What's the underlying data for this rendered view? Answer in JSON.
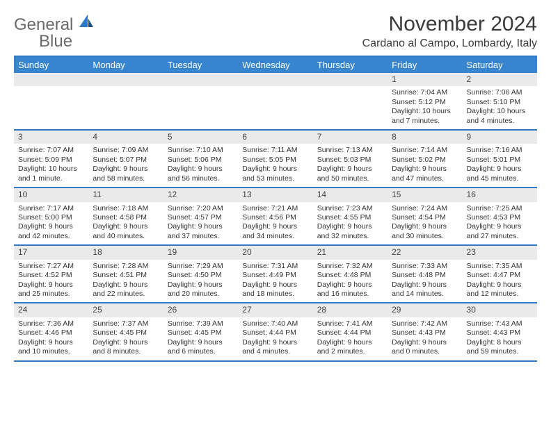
{
  "brand": {
    "name_a": "General",
    "name_b": "Blue"
  },
  "title": "November 2024",
  "location": "Cardano al Campo, Lombardy, Italy",
  "colors": {
    "accent": "#3784cf",
    "rule": "#2f78c4",
    "band": "#eaeaea",
    "text": "#333333",
    "logo_gray": "#6a6a6a"
  },
  "daysOfWeek": [
    "Sunday",
    "Monday",
    "Tuesday",
    "Wednesday",
    "Thursday",
    "Friday",
    "Saturday"
  ],
  "weeks": [
    [
      null,
      null,
      null,
      null,
      null,
      {
        "n": "1",
        "sr": "7:04 AM",
        "ss": "5:12 PM",
        "dl": "10 hours and 7 minutes."
      },
      {
        "n": "2",
        "sr": "7:06 AM",
        "ss": "5:10 PM",
        "dl": "10 hours and 4 minutes."
      }
    ],
    [
      {
        "n": "3",
        "sr": "7:07 AM",
        "ss": "5:09 PM",
        "dl": "10 hours and 1 minute."
      },
      {
        "n": "4",
        "sr": "7:09 AM",
        "ss": "5:07 PM",
        "dl": "9 hours and 58 minutes."
      },
      {
        "n": "5",
        "sr": "7:10 AM",
        "ss": "5:06 PM",
        "dl": "9 hours and 56 minutes."
      },
      {
        "n": "6",
        "sr": "7:11 AM",
        "ss": "5:05 PM",
        "dl": "9 hours and 53 minutes."
      },
      {
        "n": "7",
        "sr": "7:13 AM",
        "ss": "5:03 PM",
        "dl": "9 hours and 50 minutes."
      },
      {
        "n": "8",
        "sr": "7:14 AM",
        "ss": "5:02 PM",
        "dl": "9 hours and 47 minutes."
      },
      {
        "n": "9",
        "sr": "7:16 AM",
        "ss": "5:01 PM",
        "dl": "9 hours and 45 minutes."
      }
    ],
    [
      {
        "n": "10",
        "sr": "7:17 AM",
        "ss": "5:00 PM",
        "dl": "9 hours and 42 minutes."
      },
      {
        "n": "11",
        "sr": "7:18 AM",
        "ss": "4:58 PM",
        "dl": "9 hours and 40 minutes."
      },
      {
        "n": "12",
        "sr": "7:20 AM",
        "ss": "4:57 PM",
        "dl": "9 hours and 37 minutes."
      },
      {
        "n": "13",
        "sr": "7:21 AM",
        "ss": "4:56 PM",
        "dl": "9 hours and 34 minutes."
      },
      {
        "n": "14",
        "sr": "7:23 AM",
        "ss": "4:55 PM",
        "dl": "9 hours and 32 minutes."
      },
      {
        "n": "15",
        "sr": "7:24 AM",
        "ss": "4:54 PM",
        "dl": "9 hours and 30 minutes."
      },
      {
        "n": "16",
        "sr": "7:25 AM",
        "ss": "4:53 PM",
        "dl": "9 hours and 27 minutes."
      }
    ],
    [
      {
        "n": "17",
        "sr": "7:27 AM",
        "ss": "4:52 PM",
        "dl": "9 hours and 25 minutes."
      },
      {
        "n": "18",
        "sr": "7:28 AM",
        "ss": "4:51 PM",
        "dl": "9 hours and 22 minutes."
      },
      {
        "n": "19",
        "sr": "7:29 AM",
        "ss": "4:50 PM",
        "dl": "9 hours and 20 minutes."
      },
      {
        "n": "20",
        "sr": "7:31 AM",
        "ss": "4:49 PM",
        "dl": "9 hours and 18 minutes."
      },
      {
        "n": "21",
        "sr": "7:32 AM",
        "ss": "4:48 PM",
        "dl": "9 hours and 16 minutes."
      },
      {
        "n": "22",
        "sr": "7:33 AM",
        "ss": "4:48 PM",
        "dl": "9 hours and 14 minutes."
      },
      {
        "n": "23",
        "sr": "7:35 AM",
        "ss": "4:47 PM",
        "dl": "9 hours and 12 minutes."
      }
    ],
    [
      {
        "n": "24",
        "sr": "7:36 AM",
        "ss": "4:46 PM",
        "dl": "9 hours and 10 minutes."
      },
      {
        "n": "25",
        "sr": "7:37 AM",
        "ss": "4:45 PM",
        "dl": "9 hours and 8 minutes."
      },
      {
        "n": "26",
        "sr": "7:39 AM",
        "ss": "4:45 PM",
        "dl": "9 hours and 6 minutes."
      },
      {
        "n": "27",
        "sr": "7:40 AM",
        "ss": "4:44 PM",
        "dl": "9 hours and 4 minutes."
      },
      {
        "n": "28",
        "sr": "7:41 AM",
        "ss": "4:44 PM",
        "dl": "9 hours and 2 minutes."
      },
      {
        "n": "29",
        "sr": "7:42 AM",
        "ss": "4:43 PM",
        "dl": "9 hours and 0 minutes."
      },
      {
        "n": "30",
        "sr": "7:43 AM",
        "ss": "4:43 PM",
        "dl": "8 hours and 59 minutes."
      }
    ]
  ],
  "labels": {
    "sunrise": "Sunrise:",
    "sunset": "Sunset:",
    "daylight": "Daylight:"
  }
}
